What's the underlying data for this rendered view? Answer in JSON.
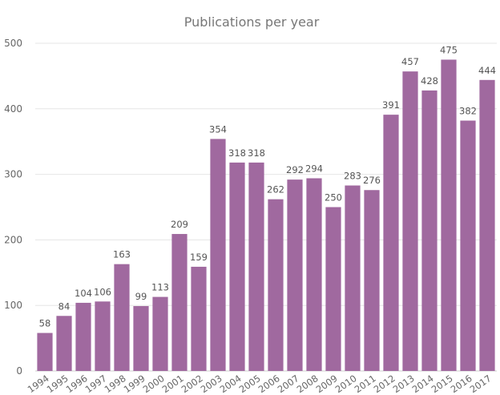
{
  "chart_data": {
    "type": "bar",
    "title": "Publications per year",
    "xlabel": "",
    "ylabel": "",
    "categories": [
      "1994",
      "1995",
      "1996",
      "1997",
      "1998",
      "1999",
      "2000",
      "2001",
      "2002",
      "2003",
      "2004",
      "2005",
      "2006",
      "2007",
      "2008",
      "2009",
      "2010",
      "2011",
      "2012",
      "2013",
      "2014",
      "2015",
      "2016",
      "2017"
    ],
    "values": [
      58,
      84,
      104,
      106,
      163,
      99,
      113,
      209,
      159,
      354,
      318,
      318,
      262,
      292,
      294,
      250,
      283,
      276,
      391,
      457,
      428,
      475,
      382,
      444
    ],
    "ylim": [
      0,
      500
    ],
    "yticks": [
      "0",
      "100",
      "200",
      "300",
      "400",
      "500"
    ],
    "bar_color": "#a0699f",
    "grid": true,
    "legend": "none"
  }
}
